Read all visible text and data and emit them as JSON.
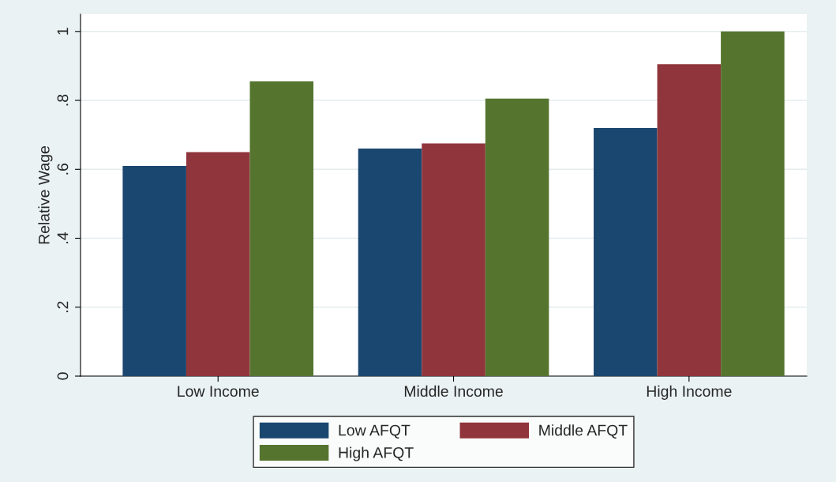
{
  "chart_data": {
    "type": "bar",
    "ylabel": "Relative Wage",
    "categories": [
      "Low Income",
      "Middle Income",
      "High Income"
    ],
    "series": [
      {
        "name": "Low AFQT",
        "color": "#1a476f",
        "values": [
          0.61,
          0.66,
          0.72
        ]
      },
      {
        "name": "Middle AFQT",
        "color": "#90353b",
        "values": [
          0.65,
          0.675,
          0.905
        ]
      },
      {
        "name": "High AFQT",
        "color": "#55752f",
        "values": [
          0.855,
          0.805,
          1.0
        ]
      }
    ],
    "ylim": [
      0,
      1.05
    ],
    "yticks": [
      0,
      {
        "value": 0.2,
        "label": ".2"
      },
      {
        "value": 0.4,
        "label": ".4"
      },
      {
        "value": 0.6,
        "label": ".6"
      },
      {
        "value": 0.8,
        "label": ".8"
      },
      1
    ],
    "grid": "y",
    "legend": "bottom"
  }
}
